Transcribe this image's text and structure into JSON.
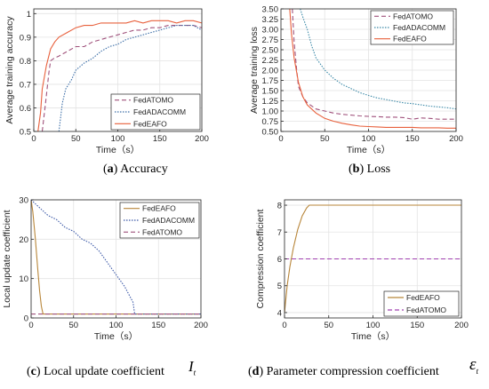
{
  "captions": [
    {
      "letter": "a",
      "text": "Accuracy"
    },
    {
      "letter": "b",
      "text": "Loss"
    },
    {
      "letter": "c",
      "text": "Local update coefficient",
      "symbol": "I",
      "sub": "t"
    },
    {
      "letter": "d",
      "text": "Parameter compression coefficient",
      "symbol": "ε",
      "sub": "t"
    }
  ],
  "chart_data": [
    {
      "type": "line",
      "xlabel": "Time（s）",
      "ylabel": "Average training accuracy",
      "xlim": [
        0,
        200
      ],
      "ylim": [
        0.5,
        1.02
      ],
      "xticks": [
        0,
        50,
        100,
        150,
        200
      ],
      "yticks": [
        0.5,
        0.6,
        0.7,
        0.8,
        0.9,
        1
      ],
      "ytick_labels": [
        "0.5",
        "0.6",
        "0.7",
        "0.8",
        "0.9",
        "1"
      ],
      "grid": true,
      "legend_position": "bottom-right",
      "series": [
        {
          "name": "FedATOMO",
          "color": "#a0527c",
          "dash": "5,3",
          "x": [
            10,
            14,
            18,
            20,
            24,
            30,
            40,
            50,
            60,
            70,
            80,
            90,
            100,
            110,
            120,
            130,
            140,
            150,
            160,
            170,
            180,
            190,
            200
          ],
          "y": [
            0.5,
            0.62,
            0.75,
            0.8,
            0.81,
            0.82,
            0.84,
            0.86,
            0.86,
            0.88,
            0.89,
            0.9,
            0.91,
            0.92,
            0.93,
            0.93,
            0.94,
            0.94,
            0.95,
            0.95,
            0.95,
            0.95,
            0.94
          ]
        },
        {
          "name": "FedADACOMM",
          "color": "#3d6fa8",
          "dash": "1.5,1.5",
          "x": [
            30,
            34,
            38,
            45,
            50,
            60,
            70,
            80,
            90,
            100,
            110,
            120,
            130,
            140,
            150,
            160,
            170,
            180,
            190,
            200
          ],
          "y": [
            0.5,
            0.62,
            0.68,
            0.72,
            0.76,
            0.79,
            0.81,
            0.84,
            0.86,
            0.87,
            0.89,
            0.9,
            0.91,
            0.92,
            0.93,
            0.94,
            0.95,
            0.95,
            0.95,
            0.93
          ]
        },
        {
          "name": "FedEAFO",
          "color": "#e8603c",
          "dash": "",
          "x": [
            5,
            8,
            10,
            15,
            20,
            25,
            30,
            40,
            50,
            60,
            70,
            80,
            90,
            100,
            110,
            120,
            130,
            140,
            150,
            160,
            170,
            180,
            190,
            200
          ],
          "y": [
            0.5,
            0.58,
            0.68,
            0.78,
            0.85,
            0.88,
            0.9,
            0.92,
            0.94,
            0.95,
            0.95,
            0.96,
            0.96,
            0.96,
            0.96,
            0.97,
            0.96,
            0.97,
            0.97,
            0.97,
            0.96,
            0.97,
            0.97,
            0.96
          ]
        }
      ]
    },
    {
      "type": "line",
      "xlabel": "Time（s）",
      "ylabel": "Average training loss",
      "xlim": [
        0,
        200
      ],
      "ylim": [
        0.5,
        3.5
      ],
      "xticks": [
        0,
        50,
        100,
        150,
        200
      ],
      "yticks": [
        0.5,
        0.75,
        1.0,
        1.25,
        1.5,
        1.75,
        2.0,
        2.25,
        2.5,
        2.75,
        3.0,
        3.25,
        3.5
      ],
      "ytick_labels": [
        "0.50",
        "0.75",
        "1.00",
        "1.25",
        "1.50",
        "1.75",
        "2.00",
        "2.25",
        "2.50",
        "2.75",
        "3.00",
        "3.25",
        "3.50"
      ],
      "grid": true,
      "legend_position": "top-right",
      "series": [
        {
          "name": "FedATOMO",
          "color": "#a0527c",
          "dash": "5,3",
          "x": [
            13,
            15,
            18,
            20,
            25,
            30,
            40,
            50,
            60,
            70,
            80,
            90,
            100,
            110,
            120,
            130,
            140,
            150,
            160,
            170,
            180,
            190,
            200
          ],
          "y": [
            3.5,
            2.7,
            2.0,
            1.6,
            1.35,
            1.2,
            1.05,
            1.0,
            0.95,
            0.92,
            0.9,
            0.88,
            0.87,
            0.86,
            0.85,
            0.85,
            0.84,
            0.8,
            0.83,
            0.82,
            0.8,
            0.8,
            0.8
          ]
        },
        {
          "name": "FedADACOMM",
          "color": "#3d8aa8",
          "dash": "1.5,1.5",
          "x": [
            22,
            25,
            30,
            35,
            40,
            50,
            60,
            70,
            80,
            90,
            100,
            110,
            120,
            130,
            140,
            150,
            160,
            170,
            180,
            190,
            200
          ],
          "y": [
            3.5,
            3.3,
            3.0,
            2.6,
            2.3,
            2.0,
            1.8,
            1.65,
            1.55,
            1.45,
            1.38,
            1.32,
            1.28,
            1.24,
            1.2,
            1.18,
            1.15,
            1.12,
            1.1,
            1.08,
            1.05
          ]
        },
        {
          "name": "FedEAFO",
          "color": "#e8603c",
          "dash": "",
          "x": [
            10,
            12,
            15,
            20,
            25,
            30,
            40,
            50,
            60,
            70,
            80,
            90,
            100,
            110,
            120,
            130,
            140,
            150,
            160,
            170,
            180,
            190,
            200
          ],
          "y": [
            3.5,
            2.9,
            2.3,
            1.7,
            1.35,
            1.15,
            0.95,
            0.82,
            0.75,
            0.7,
            0.66,
            0.63,
            0.62,
            0.61,
            0.6,
            0.6,
            0.6,
            0.6,
            0.59,
            0.59,
            0.59,
            0.58,
            0.58
          ]
        }
      ]
    },
    {
      "type": "line",
      "xlabel": "Time（s）",
      "ylabel": "Local update coefficient",
      "xlim": [
        0,
        200
      ],
      "ylim": [
        0,
        30
      ],
      "xticks": [
        0,
        50,
        100,
        150,
        200
      ],
      "yticks": [
        0,
        10,
        20,
        30
      ],
      "ytick_labels": [
        "0",
        "10",
        "20",
        "30"
      ],
      "grid": true,
      "legend_position": "top-right",
      "series": [
        {
          "name": "FedEAFO",
          "color": "#b8863a",
          "dash": "",
          "x": [
            0,
            2,
            5,
            8,
            10,
            12,
            14,
            200
          ],
          "y": [
            30,
            27,
            20,
            12,
            7,
            3,
            1,
            1
          ]
        },
        {
          "name": "FedADACOMM",
          "color": "#3d5aa8",
          "dash": "1.5,1.5",
          "x": [
            0,
            10,
            20,
            30,
            40,
            50,
            60,
            70,
            80,
            90,
            100,
            110,
            120,
            122,
            200
          ],
          "y": [
            30,
            28,
            26,
            25,
            23,
            22,
            20,
            19,
            17,
            14,
            11,
            8,
            4,
            1,
            1
          ]
        },
        {
          "name": "FedATOMO",
          "color": "#a0527c",
          "dash": "5,3",
          "x": [
            0,
            200
          ],
          "y": [
            1,
            1
          ]
        }
      ]
    },
    {
      "type": "line",
      "xlabel": "Time（s）",
      "ylabel": "Compression coefficient",
      "xlim": [
        0,
        200
      ],
      "ylim": [
        3.8,
        8.2
      ],
      "xticks": [
        0,
        50,
        100,
        150,
        200
      ],
      "yticks": [
        4,
        5,
        6,
        7,
        8
      ],
      "ytick_labels": [
        "4",
        "5",
        "6",
        "7",
        "8"
      ],
      "grid": true,
      "legend_position": "bottom-right",
      "series": [
        {
          "name": "FedEAFO",
          "color": "#b8863a",
          "dash": "",
          "x": [
            0,
            3,
            6,
            10,
            15,
            20,
            25,
            28,
            200
          ],
          "y": [
            4,
            5,
            5.7,
            6.4,
            7.1,
            7.6,
            7.9,
            8,
            8
          ]
        },
        {
          "name": "FedATOMO",
          "color": "#a040b0",
          "dash": "5,3",
          "x": [
            0,
            200
          ],
          "y": [
            6,
            6
          ]
        }
      ]
    }
  ]
}
